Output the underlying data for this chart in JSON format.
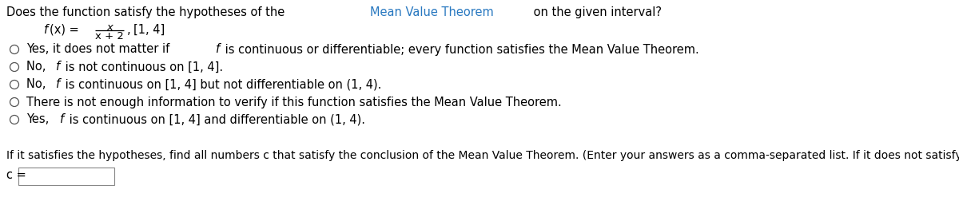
{
  "bg_color": "#ffffff",
  "mvt_color": "#2878c0",
  "font_size": 10.5,
  "title_parts": [
    {
      "text": "Does the function satisfy the hypotheses of the ",
      "color": "#000000",
      "style": "normal"
    },
    {
      "text": "Mean Value Theorem",
      "color": "#2878c0",
      "style": "normal"
    },
    {
      "text": " on the given interval?",
      "color": "#000000",
      "style": "normal"
    }
  ],
  "options": [
    "Yes, it does not matter if ƒ is continuous or differentiable; every function satisfies the Mean Value Theorem.",
    "No, ƒ is not continuous on [1, 4].",
    "No, ƒ is continuous on [1, 4] but not differentiable on (1, 4).",
    "There is not enough information to verify if this function satisfies the Mean Value Theorem.",
    "Yes, ƒ is continuous on [1, 4] and differentiable on (1, 4)."
  ],
  "options_plain": [
    [
      "Yes, it does not matter if ",
      "f",
      " is continuous or differentiable; every function satisfies the Mean Value Theorem."
    ],
    [
      "No, ",
      "f",
      " is not continuous on [1, 4]."
    ],
    [
      "No, ",
      "f",
      " is continuous on [1, 4] but not differentiable on (1, 4)."
    ],
    [
      "There is not enough information to verify if this function satisfies the Mean Value Theorem."
    ],
    [
      "Yes, ",
      "f",
      " is continuous on [1, 4] and differentiable on (1, 4)."
    ]
  ],
  "bottom_text": "If it satisfies the hypotheses, find all numbers c that satisfy the conclusion of the Mean Value Theorem. (Enter your answers as a comma-separated list. If it does not satisfy the hypotheses, enter DNE).",
  "c_label": "c ="
}
